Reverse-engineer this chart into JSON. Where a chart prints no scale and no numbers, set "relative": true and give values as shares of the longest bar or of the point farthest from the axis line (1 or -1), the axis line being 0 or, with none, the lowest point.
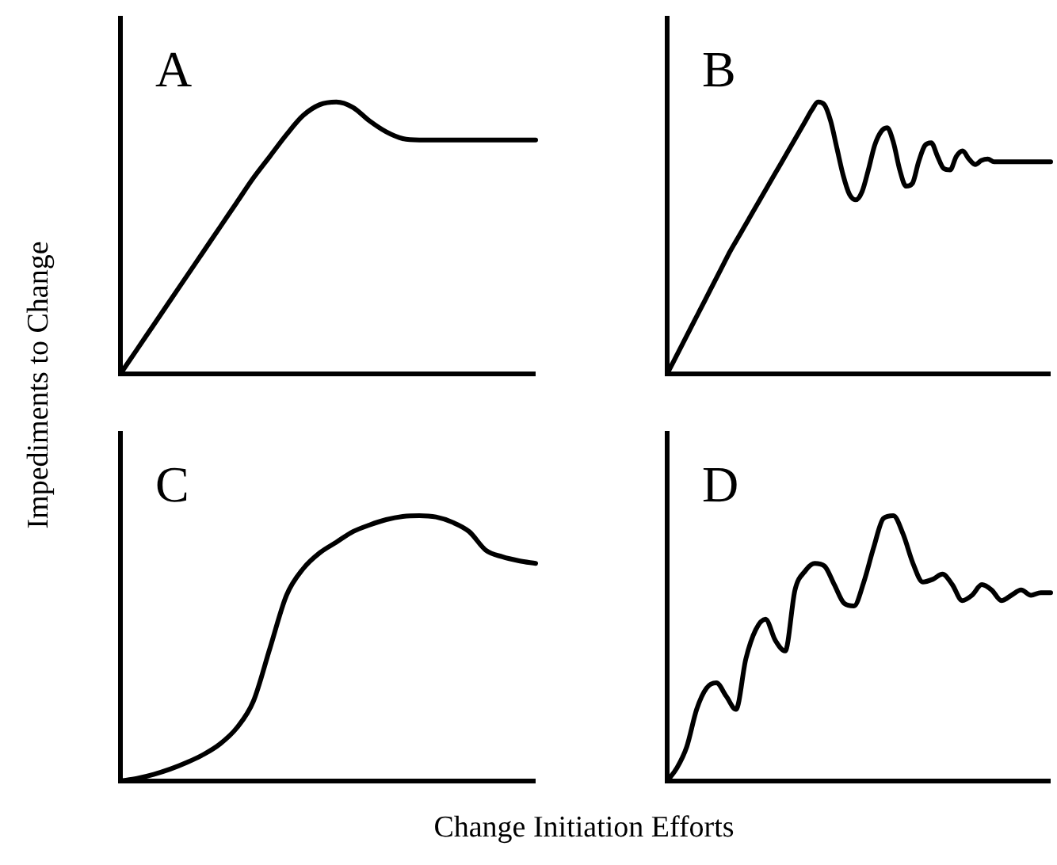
{
  "chart_data": [
    {
      "type": "line",
      "title": "A",
      "ylabel": "Impediments to Change",
      "relative": true,
      "legend": false,
      "line_style": "solid",
      "categories": [
        null,
        null,
        null,
        null,
        null,
        null,
        null,
        null,
        null,
        null,
        null,
        null,
        null,
        null,
        null,
        null,
        null,
        null,
        null,
        null,
        null,
        null,
        null,
        null,
        null,
        null
      ],
      "series": [
        {
          "color": "#000000",
          "values": [
            0,
            0.09,
            0.18,
            0.27,
            0.36,
            0.45,
            0.54,
            0.63,
            0.72,
            0.8,
            0.88,
            0.95,
            0.99,
            1.0,
            0.98,
            0.93,
            0.89,
            0.865,
            0.86,
            0.86,
            0.86,
            0.86,
            0.86,
            0.86,
            0.86,
            0.86
          ]
        }
      ]
    },
    {
      "type": "line",
      "title": "B",
      "relative": true,
      "legend": false,
      "line_style": "solid",
      "categories": [
        null,
        null,
        null,
        null,
        null,
        null,
        null,
        null,
        null,
        null,
        null,
        null,
        null,
        null,
        null,
        null,
        null,
        null,
        null,
        null,
        null,
        null,
        null,
        null,
        null,
        null,
        null,
        null,
        null,
        null,
        null,
        null,
        null,
        null,
        null,
        null,
        null,
        null,
        null,
        null,
        null,
        null,
        null,
        null,
        null,
        null,
        null,
        null,
        null,
        null,
        null,
        null,
        null,
        null,
        null,
        null,
        null,
        null,
        null,
        null,
        null,
        null
      ],
      "series": [
        {
          "color": "#000000",
          "values": [
            0,
            0.045,
            0.09,
            0.135,
            0.18,
            0.225,
            0.27,
            0.315,
            0.36,
            0.405,
            0.45,
            0.49,
            0.53,
            0.57,
            0.61,
            0.65,
            0.69,
            0.73,
            0.77,
            0.81,
            0.85,
            0.89,
            0.93,
            0.97,
            1.0,
            0.99,
            0.93,
            0.83,
            0.73,
            0.66,
            0.64,
            0.67,
            0.75,
            0.84,
            0.89,
            0.905,
            0.85,
            0.75,
            0.69,
            0.7,
            0.78,
            0.84,
            0.85,
            0.8,
            0.755,
            0.75,
            0.8,
            0.82,
            0.79,
            0.77,
            0.785,
            0.79,
            0.78,
            0.78,
            0.78,
            0.78,
            0.78,
            0.78,
            0.78,
            0.78,
            0.78,
            0.78
          ]
        }
      ]
    },
    {
      "type": "line",
      "title": "C",
      "xlabel": "Change Initiation Efforts",
      "relative": true,
      "legend": false,
      "line_style": "solid",
      "categories": [
        null,
        null,
        null,
        null,
        null,
        null,
        null,
        null,
        null,
        null,
        null,
        null,
        null,
        null,
        null,
        null,
        null,
        null,
        null,
        null,
        null,
        null,
        null,
        null,
        null,
        null
      ],
      "series": [
        {
          "color": "#000000",
          "values": [
            0,
            0.01,
            0.025,
            0.045,
            0.07,
            0.1,
            0.14,
            0.2,
            0.3,
            0.5,
            0.7,
            0.8,
            0.86,
            0.9,
            0.94,
            0.965,
            0.985,
            0.997,
            1.0,
            0.995,
            0.975,
            0.94,
            0.87,
            0.845,
            0.83,
            0.82
          ]
        }
      ]
    },
    {
      "type": "line",
      "title": "D",
      "relative": true,
      "legend": false,
      "line_style": "solid",
      "categories": [
        null,
        null,
        null,
        null,
        null,
        null,
        null,
        null,
        null,
        null,
        null,
        null,
        null,
        null,
        null,
        null,
        null,
        null,
        null,
        null,
        null,
        null,
        null,
        null,
        null,
        null,
        null,
        null,
        null,
        null,
        null,
        null,
        null,
        null,
        null,
        null,
        null,
        null,
        null,
        null
      ],
      "series": [
        {
          "color": "#000000",
          "values": [
            0,
            0.05,
            0.13,
            0.27,
            0.35,
            0.37,
            0.32,
            0.27,
            0.46,
            0.57,
            0.61,
            0.53,
            0.49,
            0.72,
            0.79,
            0.82,
            0.81,
            0.74,
            0.67,
            0.66,
            0.75,
            0.88,
            0.99,
            1.0,
            0.93,
            0.82,
            0.75,
            0.76,
            0.78,
            0.74,
            0.68,
            0.7,
            0.74,
            0.72,
            0.68,
            0.7,
            0.72,
            0.7,
            0.71,
            0.71
          ]
        }
      ]
    }
  ]
}
